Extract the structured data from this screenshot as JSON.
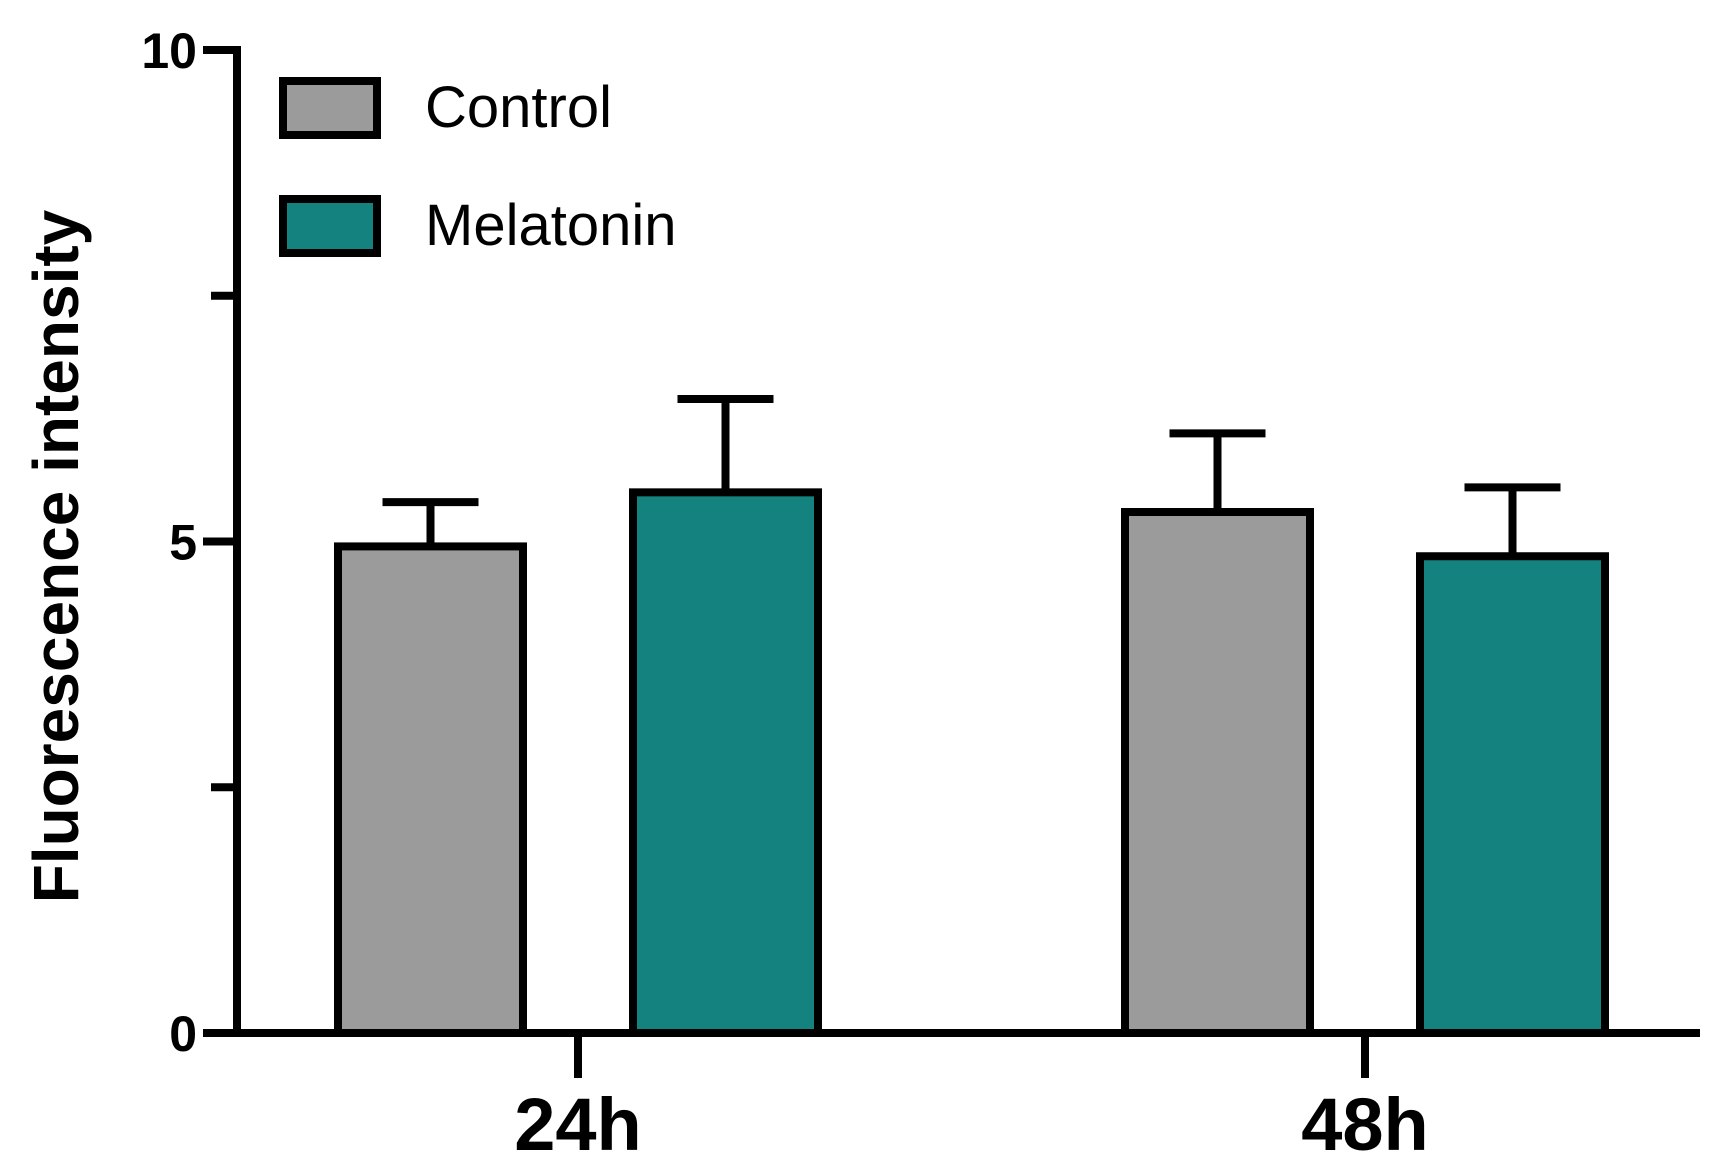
{
  "chart_data": {
    "type": "bar",
    "title": "",
    "xlabel": "",
    "ylabel": "Fluorescence intensity",
    "ylim": [
      0,
      10
    ],
    "yticks": [
      0,
      5,
      10
    ],
    "yticks_minor": [
      2.5,
      7.5
    ],
    "grid": false,
    "legend_position": "top-left",
    "categories": [
      "24h",
      "48h"
    ],
    "series": [
      {
        "name": "Control",
        "color": "#9b9b9b",
        "values": [
          4.95,
          5.3
        ],
        "errors": [
          0.45,
          0.8
        ]
      },
      {
        "name": "Melatonin",
        "color": "#14827f",
        "values": [
          5.5,
          4.85
        ],
        "errors": [
          0.95,
          0.7
        ]
      }
    ]
  }
}
